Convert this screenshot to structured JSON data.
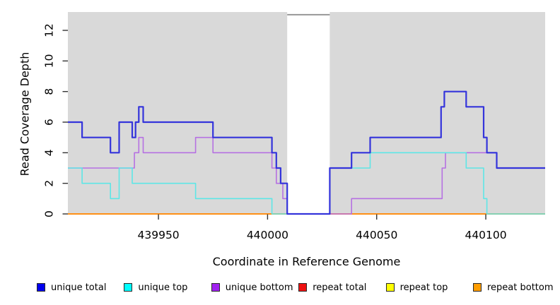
{
  "chart_data": {
    "type": "line",
    "subtype": "step-coverage-plot",
    "title": "",
    "xlabel": "Coordinate in Reference Genome",
    "ylabel": "Read Coverage Depth",
    "xlim": [
      439908.5,
      440127.2
    ],
    "ylim": [
      0,
      13.2
    ],
    "x_ticks": [
      439950,
      440000,
      440050,
      440100
    ],
    "y_ticks": [
      0,
      2,
      4,
      6,
      8,
      10,
      12
    ],
    "grid": false,
    "plot_bg_color": "#d9d9d9",
    "page_bg_color": "#ffffff",
    "tick_color": "#333333",
    "gap_region": {
      "x_start": 440009,
      "x_end": 440028.5,
      "fill": "#ffffff",
      "cap_color": "#909090"
    },
    "legend_position": "bottom",
    "series": [
      {
        "name": "unique total",
        "color": "#3434db",
        "width": 2.2,
        "points": [
          [
            439908.5,
            6
          ],
          [
            439915,
            5
          ],
          [
            439928,
            4
          ],
          [
            439932,
            6
          ],
          [
            439938,
            5
          ],
          [
            439939.5,
            6
          ],
          [
            439941,
            7
          ],
          [
            439943,
            6
          ],
          [
            439975,
            5
          ],
          [
            440002,
            4
          ],
          [
            440004,
            3
          ],
          [
            440006,
            2
          ],
          [
            440009,
            0
          ],
          [
            440028.5,
            3
          ],
          [
            440038.5,
            4
          ],
          [
            440047,
            5
          ],
          [
            440079.5,
            7
          ],
          [
            440081,
            8
          ],
          [
            440091,
            7
          ],
          [
            440099,
            5
          ],
          [
            440100.5,
            4
          ],
          [
            440105,
            3
          ]
        ]
      },
      {
        "name": "unique top",
        "color": "#5ee6e6",
        "width": 1.6,
        "points": [
          [
            439908.5,
            3
          ],
          [
            439915,
            2
          ],
          [
            439928,
            1
          ],
          [
            439932,
            3
          ],
          [
            439938,
            2
          ],
          [
            439967,
            1
          ],
          [
            440002,
            0
          ],
          [
            440028.5,
            3
          ],
          [
            440047,
            4
          ],
          [
            440091,
            3
          ],
          [
            440099,
            1
          ],
          [
            440100.5,
            0
          ]
        ]
      },
      {
        "name": "unique bottom",
        "color": "#b671e2",
        "width": 1.6,
        "points": [
          [
            439908.5,
            3
          ],
          [
            439939,
            4
          ],
          [
            439941,
            5
          ],
          [
            439943,
            4
          ],
          [
            439967,
            5
          ],
          [
            439975,
            4
          ],
          [
            440002,
            3
          ],
          [
            440004,
            2
          ],
          [
            440007,
            1
          ],
          [
            440009,
            0
          ],
          [
            440038.5,
            1
          ],
          [
            440080,
            3
          ],
          [
            440081.5,
            4
          ],
          [
            440105,
            3
          ]
        ]
      },
      {
        "name": "repeat total",
        "color": "#dd2222",
        "width": 1.6,
        "points": [
          [
            439908.5,
            0
          ]
        ]
      },
      {
        "name": "repeat top",
        "color": "#ffff33",
        "width": 1.6,
        "points": [
          [
            439908.5,
            0
          ]
        ]
      },
      {
        "name": "repeat bottom",
        "color": "#ff9016",
        "width": 2,
        "points": [
          [
            439908.5,
            0
          ]
        ]
      }
    ]
  },
  "axes": {
    "x_label": "Coordinate in Reference Genome",
    "y_label": "Read Coverage Depth"
  },
  "legend": [
    {
      "label": "unique total",
      "fill": "#0000ee"
    },
    {
      "label": "unique top",
      "fill": "#00ffff"
    },
    {
      "label": "unique bottom",
      "fill": "#a021f0"
    },
    {
      "label": "repeat total",
      "fill": "#ee1111"
    },
    {
      "label": "repeat top",
      "fill": "#ffff00"
    },
    {
      "label": "repeat bottom",
      "fill": "#ff9d00"
    }
  ]
}
